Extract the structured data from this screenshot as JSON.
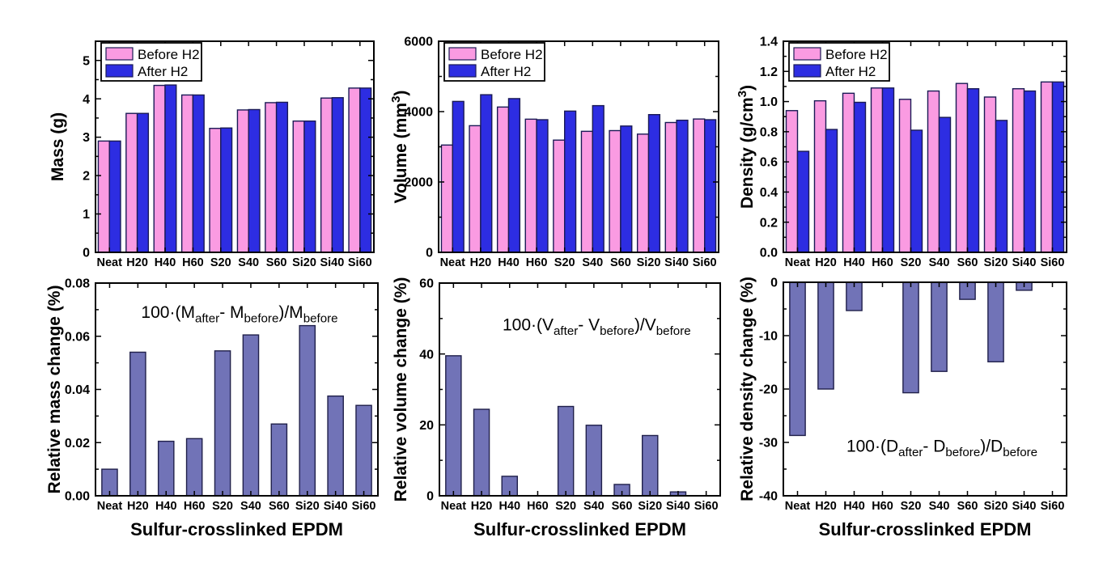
{
  "figure": {
    "background": "#ffffff",
    "categories": [
      "Neat",
      "H20",
      "H40",
      "H60",
      "S20",
      "S40",
      "S60",
      "Si20",
      "Si40",
      "Si60"
    ],
    "legend": {
      "before_label": "Before H2",
      "after_label": "After H2"
    },
    "colors": {
      "before_fill": "#FA9BE2",
      "after_fill": "#2D2DE2",
      "bar_edge": "#1A1A55",
      "relative_fill": "#7173B7",
      "relative_edge": "#20204A",
      "frame": "#000000",
      "text": "#000000"
    },
    "xlabel": "Sulfur-crosslinked EPDM"
  },
  "chart_data": [
    {
      "id": "mass",
      "type": "bar",
      "title": "",
      "ylabel": "Mass (g)",
      "xlabel": "",
      "ylim": [
        0,
        5.5
      ],
      "yticks": [
        {
          "v": 0,
          "label": "0"
        },
        {
          "v": 1,
          "label": "1"
        },
        {
          "v": 2,
          "label": "2"
        },
        {
          "v": 3,
          "label": "3"
        },
        {
          "v": 4,
          "label": "4"
        },
        {
          "v": 5,
          "label": "5"
        }
      ],
      "minor_step": 0.5,
      "grid": false,
      "legend_position": "top-left",
      "categories": [
        "Neat",
        "H20",
        "H40",
        "H60",
        "S20",
        "S40",
        "S60",
        "Si20",
        "Si40",
        "Si60"
      ],
      "series": [
        {
          "name": "Before H2",
          "values": [
            2.9,
            3.62,
            4.35,
            4.1,
            3.23,
            3.71,
            3.9,
            3.42,
            4.02,
            4.28
          ]
        },
        {
          "name": "After H2",
          "values": [
            2.9,
            3.62,
            4.36,
            4.1,
            3.24,
            3.72,
            3.91,
            3.42,
            4.03,
            4.28
          ]
        }
      ]
    },
    {
      "id": "volume",
      "type": "bar",
      "title": "",
      "ylabel": "Volume (mm^{3})",
      "xlabel": "",
      "ylim": [
        0,
        6000
      ],
      "yticks": [
        {
          "v": 0,
          "label": "0"
        },
        {
          "v": 2000,
          "label": "2000"
        },
        {
          "v": 4000,
          "label": "4000"
        },
        {
          "v": 6000,
          "label": "6000"
        }
      ],
      "minor_step": 1000,
      "grid": false,
      "legend_position": "top-left",
      "categories": [
        "Neat",
        "H20",
        "H40",
        "H60",
        "S20",
        "S40",
        "S60",
        "Si20",
        "Si40",
        "Si60"
      ],
      "series": [
        {
          "name": "Before H2",
          "values": [
            3050,
            3600,
            4130,
            3785,
            3190,
            3440,
            3460,
            3360,
            3690,
            3790
          ]
        },
        {
          "name": "After H2",
          "values": [
            4290,
            4480,
            4370,
            3770,
            4015,
            4170,
            3590,
            3915,
            3755,
            3770
          ]
        }
      ]
    },
    {
      "id": "density",
      "type": "bar",
      "title": "",
      "ylabel": "Density (g/cm^{3})",
      "xlabel": "",
      "ylim": [
        0,
        1.4
      ],
      "yticks": [
        {
          "v": 0.0,
          "label": "0.0"
        },
        {
          "v": 0.2,
          "label": "0.2"
        },
        {
          "v": 0.4,
          "label": "0.4"
        },
        {
          "v": 0.6,
          "label": "0.6"
        },
        {
          "v": 0.8,
          "label": "0.8"
        },
        {
          "v": 1.0,
          "label": "1.0"
        },
        {
          "v": 1.2,
          "label": "1.2"
        },
        {
          "v": 1.4,
          "label": "1.4"
        }
      ],
      "minor_step": 0.1,
      "grid": false,
      "legend_position": "top-left",
      "categories": [
        "Neat",
        "H20",
        "H40",
        "H60",
        "S20",
        "S40",
        "S60",
        "Si20",
        "Si40",
        "Si60"
      ],
      "series": [
        {
          "name": "Before H2",
          "values": [
            0.94,
            1.005,
            1.055,
            1.09,
            1.015,
            1.07,
            1.12,
            1.03,
            1.085,
            1.13
          ]
        },
        {
          "name": "After H2",
          "values": [
            0.67,
            0.815,
            0.995,
            1.09,
            0.81,
            0.895,
            1.085,
            0.875,
            1.07,
            1.13
          ]
        }
      ]
    },
    {
      "id": "relative-mass",
      "type": "bar",
      "title": "",
      "ylabel": "Relative mass change (%)",
      "xlabel": "Sulfur-crosslinked EPDM",
      "annotation": "100·(M_{after}- M_{before})/M_{before}",
      "ylim": [
        0,
        0.08
      ],
      "yticks": [
        {
          "v": 0.0,
          "label": "0.00"
        },
        {
          "v": 0.02,
          "label": "0.02"
        },
        {
          "v": 0.04,
          "label": "0.04"
        },
        {
          "v": 0.06,
          "label": "0.06"
        },
        {
          "v": 0.08,
          "label": "0.08"
        }
      ],
      "minor_step": 0.01,
      "grid": false,
      "legend_position": "none",
      "categories": [
        "Neat",
        "H20",
        "H40",
        "H60",
        "S20",
        "S40",
        "S60",
        "Si20",
        "Si40",
        "Si60"
      ],
      "series": [
        {
          "name": "Relative mass change",
          "values": [
            0.01,
            0.054,
            0.0205,
            0.0215,
            0.0545,
            0.0605,
            0.027,
            0.064,
            0.0375,
            0.034
          ]
        }
      ]
    },
    {
      "id": "relative-volume",
      "type": "bar",
      "title": "",
      "ylabel": "Relative volume change (%)",
      "xlabel": "Sulfur-crosslinked EPDM",
      "annotation": "100·(V_{after}- V_{before})/V_{before}",
      "ylim": [
        0,
        60
      ],
      "yticks": [
        {
          "v": 0,
          "label": "0"
        },
        {
          "v": 20,
          "label": "20"
        },
        {
          "v": 40,
          "label": "40"
        },
        {
          "v": 60,
          "label": "60"
        }
      ],
      "minor_step": 10,
      "grid": false,
      "legend_position": "none",
      "categories": [
        "Neat",
        "H20",
        "H40",
        "H60",
        "S20",
        "S40",
        "S60",
        "Si20",
        "Si40",
        "Si60"
      ],
      "series": [
        {
          "name": "Relative volume change",
          "values": [
            39.5,
            24.4,
            5.5,
            0,
            25.2,
            19.9,
            3.2,
            17.0,
            1.1,
            0
          ]
        }
      ]
    },
    {
      "id": "relative-density",
      "type": "bar",
      "title": "",
      "ylabel": "Relative density change (%)",
      "xlabel": "Sulfur-crosslinked EPDM",
      "annotation": "100·(D_{after}- D_{before})/D_{before}",
      "ylim": [
        -40,
        0
      ],
      "yticks": [
        {
          "v": 0,
          "label": "0"
        },
        {
          "v": -10,
          "label": "-10"
        },
        {
          "v": -20,
          "label": "-20"
        },
        {
          "v": -30,
          "label": "-30"
        },
        {
          "v": -40,
          "label": "-40"
        }
      ],
      "minor_step": 5,
      "grid": false,
      "legend_position": "none",
      "categories": [
        "Neat",
        "H20",
        "H40",
        "H60",
        "S20",
        "S40",
        "S60",
        "Si20",
        "Si40",
        "Si60"
      ],
      "series": [
        {
          "name": "Relative density change",
          "values": [
            -28.7,
            -20.0,
            -5.3,
            0,
            -20.7,
            -16.7,
            -3.2,
            -14.9,
            -1.5,
            0
          ]
        }
      ]
    }
  ]
}
